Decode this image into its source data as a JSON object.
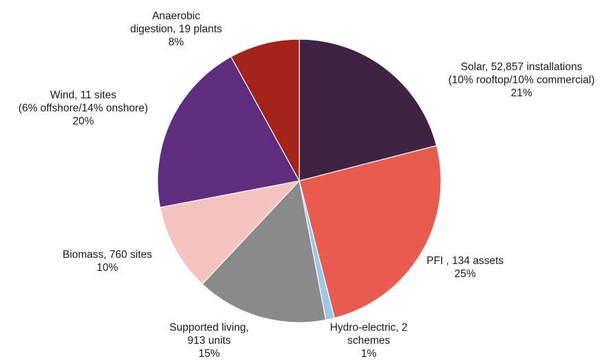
{
  "chart_data": {
    "type": "pie",
    "title": "",
    "slices": [
      {
        "lines": [
          "Solar, 52,857 installations",
          "(10% rooftop/10% commercial)"
        ],
        "pct_label": "21%",
        "value": 21,
        "color": "#3d2442"
      },
      {
        "lines": [
          "PFI , 134 assets"
        ],
        "pct_label": "25%",
        "value": 25,
        "color": "#e85c4f"
      },
      {
        "lines": [
          "Hydro-electric, 2",
          "schemes"
        ],
        "pct_label": "1%",
        "value": 1,
        "color": "#9cc8e8"
      },
      {
        "lines": [
          "Supported living,",
          "913 units"
        ],
        "pct_label": "15%",
        "value": 15,
        "color": "#8a8a8a"
      },
      {
        "lines": [
          "Biomass, 760 sites"
        ],
        "pct_label": "10%",
        "value": 10,
        "color": "#f5c4c0"
      },
      {
        "lines": [
          "Wind, 11 sites",
          "(6% offshore/14% onshore)"
        ],
        "pct_label": "20%",
        "value": 20,
        "color": "#5e2d7d"
      },
      {
        "lines": [
          "Anaerobic",
          "digestion, 19 plants"
        ],
        "pct_label": "8%",
        "value": 8,
        "color": "#a32318"
      }
    ]
  }
}
